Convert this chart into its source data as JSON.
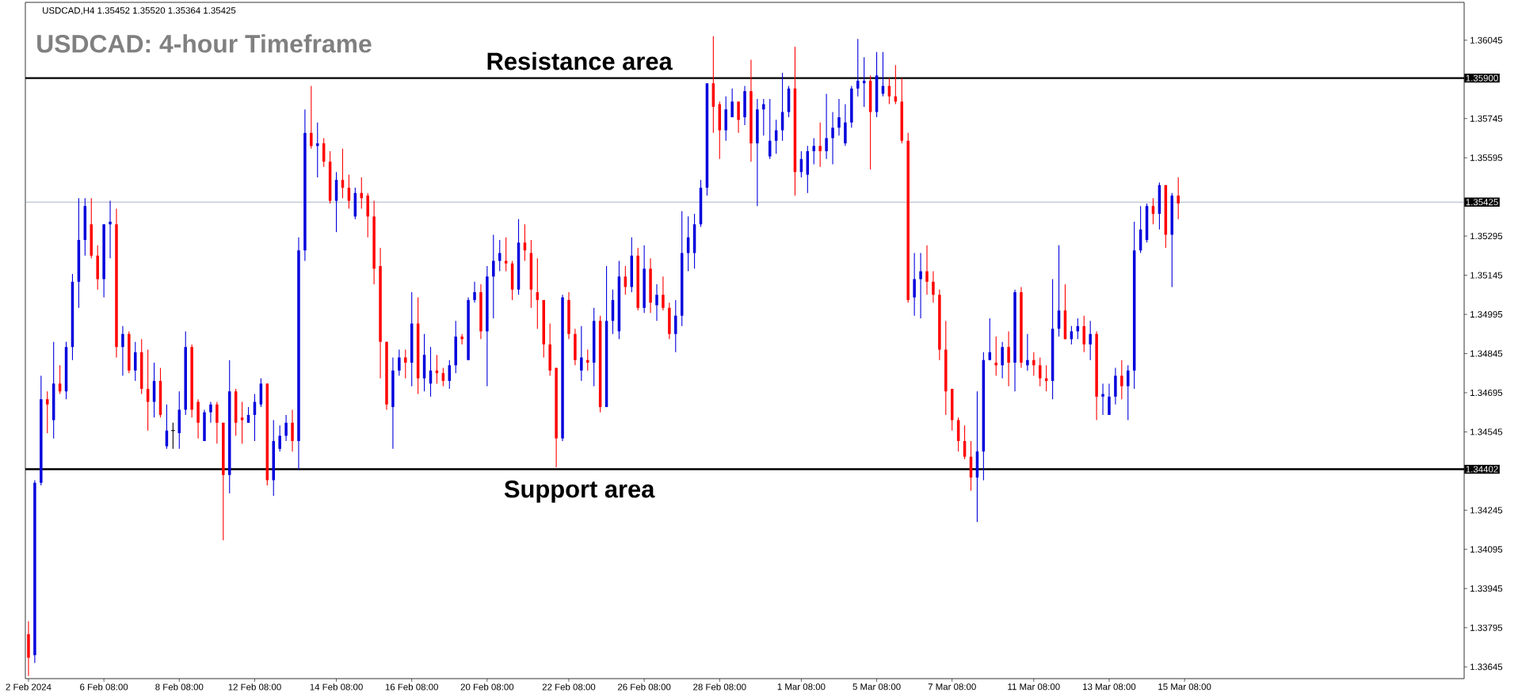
{
  "chart_data": {
    "type": "candlestick",
    "title": "USDCAD: 4-hour Timeframe",
    "annotations": [
      "USDCAD,H4  1.35452 1.35520 1.35364 1.35425",
      {
        "text": "Resistance area",
        "y": 1.359
      },
      {
        "text": "Support area",
        "y": 1.34402
      }
    ],
    "categories": [
      "2 Feb 2024",
      null,
      null,
      null,
      null,
      null,
      null,
      null,
      null,
      null,
      null,
      null,
      "6 Feb 08:00",
      null,
      null,
      null,
      null,
      null,
      null,
      null,
      null,
      null,
      null,
      null,
      "8 Feb 08:00",
      null,
      null,
      null,
      null,
      null,
      null,
      null,
      null,
      null,
      null,
      null,
      "12 Feb 08:00",
      null,
      null,
      null,
      null,
      null,
      null,
      null,
      null,
      null,
      null,
      null,
      null,
      "14 Feb 08:00",
      null,
      null,
      null,
      null,
      null,
      null,
      null,
      null,
      null,
      null,
      null,
      "16 Feb 08:00",
      null,
      null,
      null,
      null,
      null,
      null,
      null,
      null,
      null,
      null,
      null,
      "20 Feb 08:00",
      null,
      null,
      null,
      null,
      null,
      null,
      null,
      null,
      null,
      null,
      null,
      null,
      "22 Feb 08:00",
      null,
      null,
      null,
      null,
      null,
      null,
      null,
      null,
      null,
      null,
      null,
      "26 Feb 08:00",
      null,
      null,
      null,
      null,
      null,
      null,
      null,
      null,
      null,
      null,
      null,
      "28 Feb 08:00",
      null,
      null,
      null,
      null,
      null,
      null,
      null,
      null,
      null,
      null,
      null,
      null,
      "1 Mar 08:00",
      null,
      null,
      null,
      null,
      null,
      null,
      null,
      null,
      null,
      null,
      null,
      "5 Mar 08:00",
      null,
      null,
      null,
      null,
      null,
      null,
      null,
      null,
      null,
      null,
      null,
      "7 Mar 08:00",
      null,
      null,
      null,
      null,
      null,
      null,
      null,
      null,
      null,
      null,
      null,
      null,
      "11 Mar 08:00",
      null,
      null,
      null,
      null,
      null,
      null,
      null,
      null,
      null,
      null,
      null,
      "13 Mar 08:00",
      null,
      null,
      null,
      null,
      null,
      null,
      null,
      null,
      null,
      null,
      null,
      "15 Mar 08:00",
      null,
      null,
      null,
      null,
      null,
      null,
      null,
      null,
      null,
      null,
      null,
      null,
      null,
      null,
      null,
      null,
      null,
      null,
      null,
      null,
      null,
      null,
      null,
      null,
      null,
      null,
      null,
      null,
      null,
      null,
      null,
      null,
      null,
      null,
      null,
      null,
      null,
      null,
      null,
      null,
      null,
      null,
      null,
      null
    ],
    "ohlc": [
      [
        1.3377,
        1.3382,
        1.3361,
        1.3368
      ],
      [
        1.3369,
        1.3436,
        1.3366,
        1.3435
      ],
      [
        1.3435,
        1.3476,
        1.3434,
        1.3467
      ],
      [
        1.3467,
        1.347,
        1.3454,
        1.3465
      ],
      [
        1.3459,
        1.3489,
        1.3452,
        1.3473
      ],
      [
        1.3473,
        1.348,
        1.3469,
        1.347
      ],
      [
        1.347,
        1.3489,
        1.3467,
        1.3487
      ],
      [
        1.3487,
        1.3515,
        1.3482,
        1.3512
      ],
      [
        1.3512,
        1.3544,
        1.3502,
        1.3528
      ],
      [
        1.3528,
        1.3544,
        1.3522,
        1.3541
      ],
      [
        1.3534,
        1.3544,
        1.3521,
        1.3522
      ],
      [
        1.3522,
        1.3526,
        1.3509,
        1.3513
      ],
      [
        1.3513,
        1.3534,
        1.3506,
        1.3534
      ],
      [
        1.3534,
        1.3543,
        1.3521,
        1.3535
      ],
      [
        1.3534,
        1.354,
        1.3483,
        1.3487
      ],
      [
        1.3487,
        1.3495,
        1.3476,
        1.3492
      ],
      [
        1.3492,
        1.3493,
        1.3477,
        1.3478
      ],
      [
        1.3478,
        1.3489,
        1.3474,
        1.3485
      ],
      [
        1.3485,
        1.349,
        1.3469,
        1.3471
      ],
      [
        1.3471,
        1.3486,
        1.3455,
        1.3466
      ],
      [
        1.3466,
        1.3481,
        1.346,
        1.3474
      ],
      [
        1.3474,
        1.3479,
        1.346,
        1.3461
      ],
      [
        1.3449,
        1.3465,
        1.3448,
        1.3455
      ],
      [
        1.3455,
        1.3458,
        1.3448,
        1.3455
      ],
      [
        1.3454,
        1.347,
        1.3448,
        1.3463
      ],
      [
        1.3463,
        1.3493,
        1.3461,
        1.3487
      ],
      [
        1.3487,
        1.3488,
        1.346,
        1.3463
      ],
      [
        1.3466,
        1.3467,
        1.3452,
        1.3458
      ],
      [
        1.3451,
        1.3463,
        1.3451,
        1.3462
      ],
      [
        1.3462,
        1.3466,
        1.3458,
        1.3465
      ],
      [
        1.3465,
        1.3466,
        1.345,
        1.3458
      ],
      [
        1.3458,
        1.3458,
        1.3413,
        1.3438
      ],
      [
        1.3438,
        1.3482,
        1.3431,
        1.347
      ],
      [
        1.347,
        1.3471,
        1.3453,
        1.3458
      ],
      [
        1.346,
        1.3466,
        1.345,
        1.3459
      ],
      [
        1.3458,
        1.3464,
        1.3458,
        1.3461
      ],
      [
        1.3461,
        1.3469,
        1.3451,
        1.3466
      ],
      [
        1.3465,
        1.3475,
        1.3464,
        1.3473
      ],
      [
        1.3473,
        1.3473,
        1.3434,
        1.3436
      ],
      [
        1.3436,
        1.3459,
        1.343,
        1.3451
      ],
      [
        1.3448,
        1.3457,
        1.3447,
        1.3453
      ],
      [
        1.3453,
        1.3461,
        1.3451,
        1.3458
      ],
      [
        1.3458,
        1.3463,
        1.3447,
        1.3451
      ],
      [
        1.3451,
        1.3529,
        1.344,
        1.3524
      ],
      [
        1.3524,
        1.3578,
        1.352,
        1.3569
      ],
      [
        1.3569,
        1.3587,
        1.3563,
        1.3564
      ],
      [
        1.3564,
        1.3573,
        1.3552,
        1.3565
      ],
      [
        1.3565,
        1.3567,
        1.3556,
        1.3558
      ],
      [
        1.3558,
        1.3562,
        1.3542,
        1.3543
      ],
      [
        1.3543,
        1.3554,
        1.3531,
        1.3551
      ],
      [
        1.3551,
        1.3563,
        1.3544,
        1.3548
      ],
      [
        1.3548,
        1.3553,
        1.354,
        1.3543
      ],
      [
        1.3537,
        1.3548,
        1.3536,
        1.3546
      ],
      [
        1.3546,
        1.3552,
        1.354,
        1.3544
      ],
      [
        1.3545,
        1.3546,
        1.3529,
        1.3537
      ],
      [
        1.3537,
        1.3543,
        1.3511,
        1.3517
      ],
      [
        1.3518,
        1.3525,
        1.3475,
        1.3489
      ],
      [
        1.3489,
        1.3489,
        1.3463,
        1.3465
      ],
      [
        1.3464,
        1.3483,
        1.3448,
        1.3478
      ],
      [
        1.3478,
        1.3486,
        1.3476,
        1.3483
      ],
      [
        1.3483,
        1.3486,
        1.3475,
        1.3481
      ],
      [
        1.3481,
        1.3508,
        1.3472,
        1.3496
      ],
      [
        1.3496,
        1.3506,
        1.3469,
        1.3475
      ],
      [
        1.3475,
        1.3492,
        1.347,
        1.3484
      ],
      [
        1.3473,
        1.3487,
        1.3468,
        1.3478
      ],
      [
        1.3478,
        1.3484,
        1.3473,
        1.3477
      ],
      [
        1.3477,
        1.3479,
        1.3472,
        1.3474
      ],
      [
        1.3474,
        1.3482,
        1.3471,
        1.348
      ],
      [
        1.348,
        1.3497,
        1.3477,
        1.3491
      ],
      [
        1.3491,
        1.3492,
        1.3488,
        1.349
      ],
      [
        1.3482,
        1.3506,
        1.3482,
        1.3505
      ],
      [
        1.3505,
        1.3512,
        1.3504,
        1.3508
      ],
      [
        1.3508,
        1.3511,
        1.349,
        1.3493
      ],
      [
        1.3493,
        1.3518,
        1.3472,
        1.3514
      ],
      [
        1.3514,
        1.353,
        1.3498,
        1.352
      ],
      [
        1.352,
        1.3528,
        1.3516,
        1.3523
      ],
      [
        1.352,
        1.3529,
        1.3516,
        1.3519
      ],
      [
        1.3519,
        1.352,
        1.3505,
        1.3509
      ],
      [
        1.3509,
        1.3536,
        1.3507,
        1.3527
      ],
      [
        1.3527,
        1.3534,
        1.352,
        1.3524
      ],
      [
        1.3523,
        1.3528,
        1.3502,
        1.3509
      ],
      [
        1.3508,
        1.3521,
        1.3494,
        1.3505
      ],
      [
        1.3505,
        1.3505,
        1.3483,
        1.3488
      ],
      [
        1.3488,
        1.3496,
        1.3476,
        1.3478
      ],
      [
        1.3479,
        1.3479,
        1.3441,
        1.3452
      ],
      [
        1.3452,
        1.3507,
        1.3451,
        1.3506
      ],
      [
        1.3505,
        1.3508,
        1.349,
        1.3492
      ],
      [
        1.3492,
        1.3494,
        1.348,
        1.3482
      ],
      [
        1.3478,
        1.3495,
        1.3474,
        1.3483
      ],
      [
        1.3482,
        1.3486,
        1.3478,
        1.3481
      ],
      [
        1.3481,
        1.3502,
        1.3472,
        1.3497
      ],
      [
        1.3497,
        1.3499,
        1.3462,
        1.3464
      ],
      [
        1.3464,
        1.3518,
        1.3464,
        1.3497
      ],
      [
        1.3497,
        1.3509,
        1.3492,
        1.3505
      ],
      [
        1.3493,
        1.352,
        1.349,
        1.3514
      ],
      [
        1.3514,
        1.3518,
        1.3507,
        1.351
      ],
      [
        1.351,
        1.3529,
        1.3508,
        1.3522
      ],
      [
        1.3522,
        1.3525,
        1.3501,
        1.3502
      ],
      [
        1.3502,
        1.3526,
        1.35,
        1.3517
      ],
      [
        1.3517,
        1.3521,
        1.35,
        1.3504
      ],
      [
        1.3503,
        1.3511,
        1.3497,
        1.3507
      ],
      [
        1.3507,
        1.3514,
        1.3501,
        1.3502
      ],
      [
        1.3502,
        1.3504,
        1.349,
        1.3492
      ],
      [
        1.3492,
        1.3505,
        1.3485,
        1.3499
      ],
      [
        1.3499,
        1.3539,
        1.3495,
        1.3523
      ],
      [
        1.3523,
        1.3537,
        1.3516,
        1.3529
      ],
      [
        1.3523,
        1.3538,
        1.3517,
        1.3534
      ],
      [
        1.3534,
        1.3551,
        1.3533,
        1.3548
      ],
      [
        1.3548,
        1.3588,
        1.3545,
        1.3588
      ],
      [
        1.3588,
        1.3606,
        1.3569,
        1.3579
      ],
      [
        1.358,
        1.3581,
        1.3559,
        1.357
      ],
      [
        1.357,
        1.3583,
        1.3566,
        1.3578
      ],
      [
        1.3575,
        1.3586,
        1.3575,
        1.3581
      ],
      [
        1.3581,
        1.3581,
        1.3569,
        1.3574
      ],
      [
        1.3575,
        1.3587,
        1.3572,
        1.3585
      ],
      [
        1.3585,
        1.3597,
        1.3558,
        1.3565
      ],
      [
        1.3565,
        1.3582,
        1.3541,
        1.3578
      ],
      [
        1.3578,
        1.3582,
        1.3568,
        1.358
      ],
      [
        1.356,
        1.3582,
        1.3559,
        1.3566
      ],
      [
        1.3566,
        1.3574,
        1.3561,
        1.357
      ],
      [
        1.357,
        1.3592,
        1.3566,
        1.3577
      ],
      [
        1.3577,
        1.3587,
        1.3575,
        1.3586
      ],
      [
        1.3586,
        1.3602,
        1.3545,
        1.3554
      ],
      [
        1.3554,
        1.3562,
        1.3552,
        1.3559
      ],
      [
        1.3553,
        1.3564,
        1.3546,
        1.3562
      ],
      [
        1.3562,
        1.3567,
        1.3557,
        1.3564
      ],
      [
        1.3564,
        1.3573,
        1.3556,
        1.3562
      ],
      [
        1.3562,
        1.3584,
        1.3559,
        1.3567
      ],
      [
        1.3567,
        1.3577,
        1.3557,
        1.3571
      ],
      [
        1.3571,
        1.3582,
        1.3568,
        1.3575
      ],
      [
        1.3565,
        1.358,
        1.3564,
        1.3573
      ],
      [
        1.3573,
        1.3587,
        1.3571,
        1.3586
      ],
      [
        1.3586,
        1.3605,
        1.3583,
        1.3589
      ],
      [
        1.3588,
        1.3598,
        1.3579,
        1.3589
      ],
      [
        1.3589,
        1.3591,
        1.3555,
        1.3577
      ],
      [
        1.3577,
        1.36,
        1.3575,
        1.3591
      ],
      [
        1.3584,
        1.36,
        1.3583,
        1.3587
      ],
      [
        1.3587,
        1.359,
        1.358,
        1.3583
      ],
      [
        1.3583,
        1.3595,
        1.358,
        1.3581
      ],
      [
        1.3581,
        1.359,
        1.3565,
        1.3566
      ],
      [
        1.3566,
        1.3569,
        1.3504,
        1.3505
      ],
      [
        1.3506,
        1.3523,
        1.3499,
        1.3513
      ],
      [
        1.3513,
        1.3523,
        1.3498,
        1.3516
      ],
      [
        1.3516,
        1.3526,
        1.3507,
        1.3512
      ],
      [
        1.3512,
        1.3516,
        1.3504,
        1.3507
      ],
      [
        1.3507,
        1.3509,
        1.3482,
        1.3486
      ],
      [
        1.3486,
        1.3497,
        1.3461,
        1.347
      ],
      [
        1.3471,
        1.3471,
        1.3455,
        1.3459
      ],
      [
        1.3459,
        1.346,
        1.3447,
        1.3451
      ],
      [
        1.3451,
        1.3457,
        1.3444,
        1.3445
      ],
      [
        1.3445,
        1.3451,
        1.3432,
        1.3437
      ],
      [
        1.3437,
        1.347,
        1.342,
        1.3447
      ],
      [
        1.3447,
        1.3485,
        1.3436,
        1.3482
      ],
      [
        1.3482,
        1.3498,
        1.3482,
        1.3485
      ],
      [
        1.3481,
        1.3491,
        1.3476,
        1.348
      ],
      [
        1.348,
        1.3489,
        1.3475,
        1.3487
      ],
      [
        1.3487,
        1.3493,
        1.3472,
        1.3481
      ],
      [
        1.3481,
        1.3509,
        1.347,
        1.3508
      ],
      [
        1.3508,
        1.351,
        1.3479,
        1.3481
      ],
      [
        1.348,
        1.3492,
        1.3478,
        1.3482
      ],
      [
        1.3482,
        1.3485,
        1.3476,
        1.348
      ],
      [
        1.348,
        1.3483,
        1.3472,
        1.3475
      ],
      [
        1.3475,
        1.348,
        1.347,
        1.3474
      ],
      [
        1.3474,
        1.3513,
        1.3467,
        1.3494
      ],
      [
        1.3494,
        1.3526,
        1.3491,
        1.3501
      ],
      [
        1.3501,
        1.3511,
        1.349,
        1.349
      ],
      [
        1.349,
        1.3495,
        1.3488,
        1.3493
      ],
      [
        1.3493,
        1.3498,
        1.349,
        1.3495
      ],
      [
        1.3495,
        1.3499,
        1.3485,
        1.3488
      ],
      [
        1.3488,
        1.3497,
        1.3482,
        1.3492
      ],
      [
        1.3492,
        1.3493,
        1.3459,
        1.3468
      ],
      [
        1.3468,
        1.3473,
        1.3461,
        1.3469
      ],
      [
        1.3461,
        1.3473,
        1.3461,
        1.3468
      ],
      [
        1.3468,
        1.3479,
        1.3465,
        1.3476
      ],
      [
        1.3476,
        1.3482,
        1.3467,
        1.3472
      ],
      [
        1.3472,
        1.348,
        1.3459,
        1.3478
      ],
      [
        1.3478,
        1.3535,
        1.3471,
        1.3524
      ],
      [
        1.3524,
        1.3541,
        1.3523,
        1.3532
      ],
      [
        1.3528,
        1.3542,
        1.3527,
        1.3541
      ],
      [
        1.3541,
        1.3544,
        1.3534,
        1.3538
      ],
      [
        1.3538,
        1.355,
        1.3532,
        1.3549
      ],
      [
        1.3549,
        1.3549,
        1.3525,
        1.353
      ],
      [
        1.353,
        1.3546,
        1.351,
        1.3545
      ],
      [
        1.3545,
        1.3552,
        1.3536,
        1.3542
      ],
      null,
      null,
      null,
      null,
      null,
      null,
      null,
      null,
      null,
      null,
      null,
      null,
      null,
      null,
      null,
      null,
      null,
      null,
      null,
      null,
      null,
      null,
      null,
      null,
      null,
      null,
      null,
      null,
      null,
      null,
      null,
      null,
      null,
      null,
      null,
      null,
      null,
      null,
      null,
      null,
      null,
      null,
      null,
      null,
      null
    ],
    "colors": [
      "#ff0000",
      "#0000dd",
      "#0000dd",
      "#ff0000",
      "#0000dd",
      "#ff0000",
      "#0000dd",
      "#0000dd",
      "#0000dd",
      "#0000dd",
      "#ff0000",
      "#ff0000",
      "#0000dd",
      "#0000dd",
      "#ff0000",
      "#0000dd",
      "#ff0000",
      "#0000dd",
      "#ff0000",
      "#ff0000",
      "#0000dd",
      "#ff0000",
      "#0000dd",
      "#000000",
      "#0000dd",
      "#0000dd",
      "#ff0000",
      "#ff0000",
      "#0000dd",
      "#0000dd",
      "#ff0000",
      "#ff0000",
      "#0000dd",
      "#ff0000",
      "#ff0000",
      "#0000dd",
      "#0000dd",
      "#0000dd",
      "#ff0000",
      "#0000dd",
      "#0000dd",
      "#0000dd",
      "#ff0000",
      "#0000dd",
      "#0000dd",
      "#ff0000",
      "#0000dd",
      "#ff0000",
      "#ff0000",
      "#0000dd",
      "#ff0000",
      "#ff0000",
      "#0000dd",
      "#ff0000",
      "#ff0000",
      "#ff0000",
      "#ff0000",
      "#ff0000",
      "#0000dd",
      "#0000dd",
      "#ff0000",
      "#0000dd",
      "#ff0000",
      "#0000dd",
      "#0000dd",
      "#ff0000",
      "#ff0000",
      "#0000dd",
      "#0000dd",
      "#ff0000",
      "#0000dd",
      "#0000dd",
      "#ff0000",
      "#0000dd",
      "#0000dd",
      "#0000dd",
      "#ff0000",
      "#ff0000",
      "#0000dd",
      "#ff0000",
      "#ff0000",
      "#ff0000",
      "#ff0000",
      "#ff0000",
      "#ff0000",
      "#0000dd",
      "#ff0000",
      "#ff0000",
      "#0000dd",
      "#ff0000",
      "#0000dd",
      "#ff0000",
      "#0000dd",
      "#0000dd",
      "#0000dd",
      "#ff0000",
      "#0000dd",
      "#ff0000",
      "#0000dd",
      "#ff0000",
      "#0000dd",
      "#ff0000",
      "#ff0000",
      "#0000dd",
      "#0000dd",
      "#0000dd",
      "#0000dd",
      "#0000dd",
      "#0000dd",
      "#ff0000",
      "#ff0000",
      "#0000dd",
      "#0000dd",
      "#ff0000",
      "#0000dd",
      "#ff0000",
      "#0000dd",
      "#0000dd",
      "#0000dd",
      "#0000dd",
      "#0000dd",
      "#0000dd",
      "#ff0000",
      "#0000dd",
      "#0000dd",
      "#0000dd",
      "#ff0000",
      "#0000dd",
      "#0000dd",
      "#0000dd",
      "#0000dd",
      "#0000dd",
      "#0000dd",
      "#0000dd",
      "#ff0000",
      "#0000dd",
      "#0000dd",
      "#ff0000",
      "#ff0000",
      "#ff0000",
      "#ff0000",
      "#0000dd",
      "#0000dd",
      "#ff0000",
      "#ff0000",
      "#ff0000",
      "#ff0000",
      "#ff0000",
      "#ff0000",
      "#ff0000",
      "#ff0000",
      "#0000dd",
      "#0000dd",
      "#0000dd",
      "#ff0000",
      "#0000dd",
      "#ff0000",
      "#0000dd",
      "#ff0000",
      "#0000dd",
      "#ff0000",
      "#ff0000",
      "#ff0000",
      "#0000dd",
      "#0000dd",
      "#ff0000",
      "#0000dd",
      "#0000dd",
      "#ff0000",
      "#0000dd",
      "#ff0000",
      "#0000dd",
      "#0000dd",
      "#0000dd",
      "#ff0000",
      "#0000dd",
      "#0000dd",
      "#0000dd",
      "#0000dd",
      "#ff0000",
      "#0000dd",
      "#ff0000",
      "#0000dd",
      "#ff0000",
      null,
      null,
      null,
      null,
      null,
      null,
      null,
      null,
      null,
      null,
      null,
      null,
      null,
      null,
      null,
      null,
      null,
      null,
      null,
      null,
      null,
      null,
      null,
      null,
      null,
      null,
      null,
      null,
      null,
      null,
      null,
      null,
      null,
      null,
      null,
      null,
      null,
      null,
      null,
      null,
      null,
      null,
      null,
      null,
      null
    ],
    "ylim": [
      1.336,
      1.3619
    ],
    "yticks": [
      1.36045,
      1.35745,
      1.35595,
      1.35295,
      1.35145,
      1.34995,
      1.34845,
      1.34695,
      1.34545,
      1.34245,
      1.34095,
      1.33945,
      1.33795,
      1.33645
    ],
    "ref_lines": [
      {
        "axis": "y",
        "value": 1.359,
        "label": "1.35900",
        "color": "#000000"
      },
      {
        "axis": "y",
        "value": 1.34402,
        "label": "1.34402",
        "color": "#000000"
      },
      {
        "axis": "y",
        "value": 1.35425,
        "label": "1.35425",
        "color": "#8497b0"
      }
    ]
  }
}
